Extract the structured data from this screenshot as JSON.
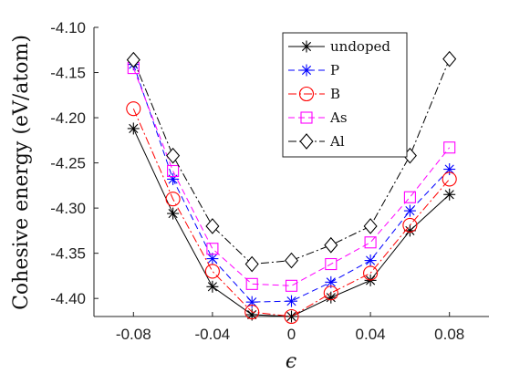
{
  "chart_data": {
    "type": "line",
    "title": "",
    "xlabel": "ϵ",
    "ylabel": "Cohesive energy (eV/atom)",
    "x": [
      -0.08,
      -0.06,
      -0.04,
      -0.02,
      0,
      0.02,
      0.04,
      0.06,
      0.08
    ],
    "xlim": [
      -0.1,
      0.1
    ],
    "ylim": [
      -4.42,
      -4.1
    ],
    "xticks": [
      -0.08,
      -0.04,
      0,
      0.04,
      0.08
    ],
    "xtick_labels": [
      "-0.08",
      "-0.04",
      "0",
      "0.04",
      "0.08"
    ],
    "yticks": [
      -4.4,
      -4.35,
      -4.3,
      -4.25,
      -4.2,
      -4.15,
      -4.1
    ],
    "ytick_labels": [
      "-4.40",
      "-4.35",
      "-4.30",
      "-4.25",
      "-4.20",
      "-4.15",
      "-4.10"
    ],
    "grid": false,
    "legend_position": "top-right",
    "series": [
      {
        "name": "undoped",
        "color": "#000000",
        "dash": "none",
        "marker": "asterisk",
        "values": [
          -4.212,
          -4.306,
          -4.387,
          -4.418,
          -4.42,
          -4.399,
          -4.38,
          -4.325,
          -4.285
        ]
      },
      {
        "name": "P",
        "color": "#0000ff",
        "dash": "7,4",
        "marker": "asterisk",
        "values": [
          -4.141,
          -4.268,
          -4.356,
          -4.404,
          -4.403,
          -4.382,
          -4.358,
          -4.303,
          -4.257
        ]
      },
      {
        "name": "B",
        "color": "#ff0000",
        "dash": "9,3,2,3",
        "marker": "circle",
        "values": [
          -4.19,
          -4.29,
          -4.37,
          -4.415,
          -4.42,
          -4.394,
          -4.372,
          -4.319,
          -4.268
        ]
      },
      {
        "name": "As",
        "color": "#ff00ff",
        "dash": "7,4",
        "marker": "square",
        "values": [
          -4.145,
          -4.259,
          -4.345,
          -4.384,
          -4.386,
          -4.362,
          -4.338,
          -4.288,
          -4.233
        ]
      },
      {
        "name": "Al",
        "color": "#000000",
        "dash": "9,3,2,3",
        "marker": "diamond",
        "values": [
          -4.136,
          -4.242,
          -4.32,
          -4.362,
          -4.358,
          -4.341,
          -4.32,
          -4.242,
          -4.135
        ]
      }
    ]
  }
}
